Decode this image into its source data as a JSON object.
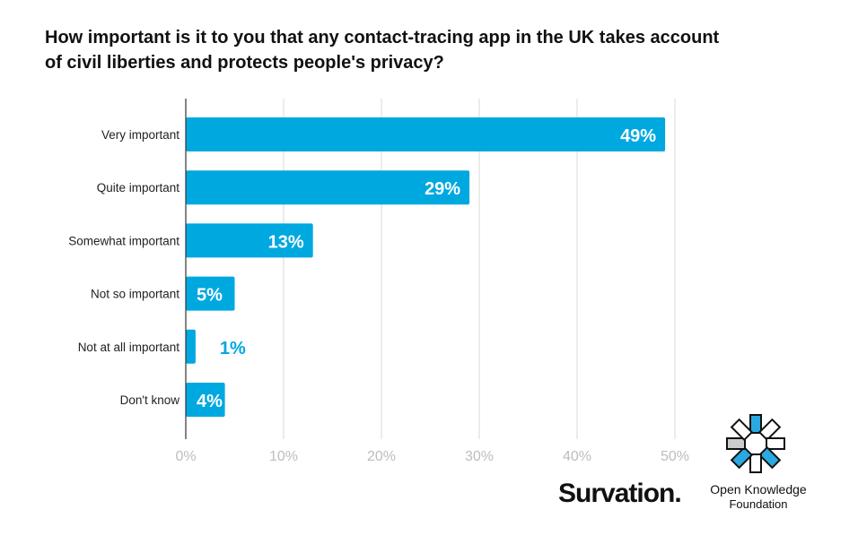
{
  "title_lines": [
    "How important is it to you that any contact-tracing app in the UK takes account",
    "of civil liberties and protects people's privacy?"
  ],
  "chart_data": {
    "type": "bar",
    "orientation": "horizontal",
    "categories": [
      "Very important",
      "Quite important",
      "Somewhat important",
      "Not so important",
      "Not at all important",
      "Don't know"
    ],
    "values": [
      49,
      29,
      13,
      5,
      1,
      4
    ],
    "value_labels": [
      "49%",
      "29%",
      "13%",
      "5%",
      "1%",
      "4%"
    ],
    "xlim": [
      0,
      50
    ],
    "x_ticks": [
      0,
      10,
      20,
      30,
      40,
      50
    ],
    "x_tick_labels": [
      "0%",
      "10%",
      "20%",
      "30%",
      "40%",
      "50%"
    ],
    "grid": "vertical",
    "bar_color": "#00a8e0"
  },
  "logos": {
    "survation": "Survation.",
    "okf_name": "Open Knowledge",
    "okf_sub": "Foundation"
  }
}
